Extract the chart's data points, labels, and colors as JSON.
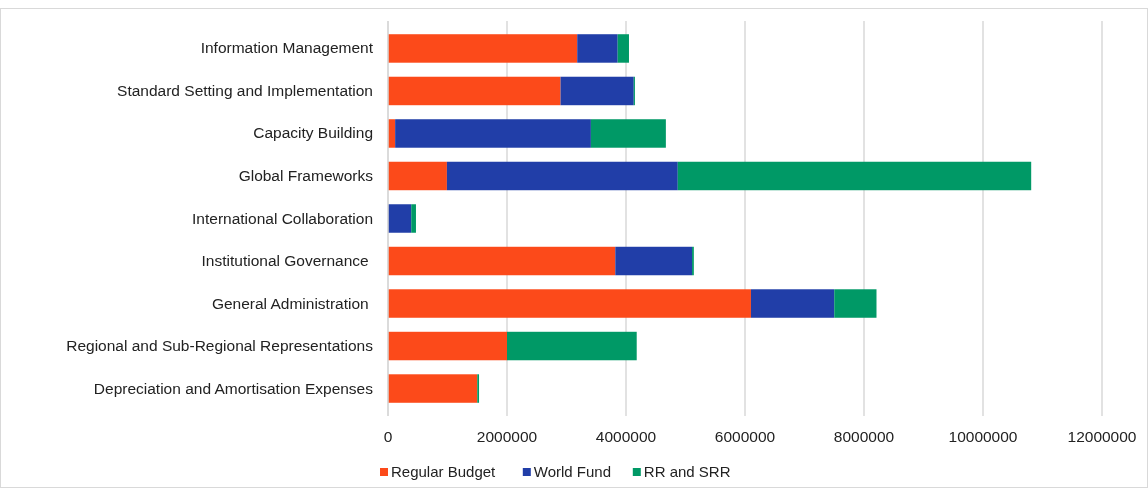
{
  "chart_data": {
    "type": "bar",
    "orientation": "horizontal",
    "stacked": true,
    "categories": [
      "Information Management",
      "Standard Setting and Implementation",
      "Capacity Building",
      "Global Frameworks",
      "International Collaboration",
      "Institutional Governance ",
      "General Administration ",
      "Regional and Sub-Regional Representations",
      "Depreciation and Amortisation Expenses"
    ],
    "series": [
      {
        "name": "Regular Budget",
        "color": "#fc4a1a",
        "values": [
          3180000,
          2900000,
          120000,
          990000,
          0,
          3820000,
          6100000,
          2000000,
          1500000
        ]
      },
      {
        "name": "World Fund",
        "color": "#213ea8",
        "values": [
          680000,
          1230000,
          3290000,
          3880000,
          390000,
          1290000,
          1400000,
          0,
          0
        ]
      },
      {
        "name": "RR and SRR",
        "color": "#009966",
        "values": [
          190000,
          20000,
          1260000,
          5940000,
          80000,
          30000,
          710000,
          2180000,
          30000
        ]
      }
    ],
    "xlim": [
      0,
      12000000
    ],
    "xticks": [
      0,
      2000000,
      4000000,
      6000000,
      8000000,
      10000000,
      12000000
    ],
    "grid": "x",
    "legend": "bottom"
  }
}
